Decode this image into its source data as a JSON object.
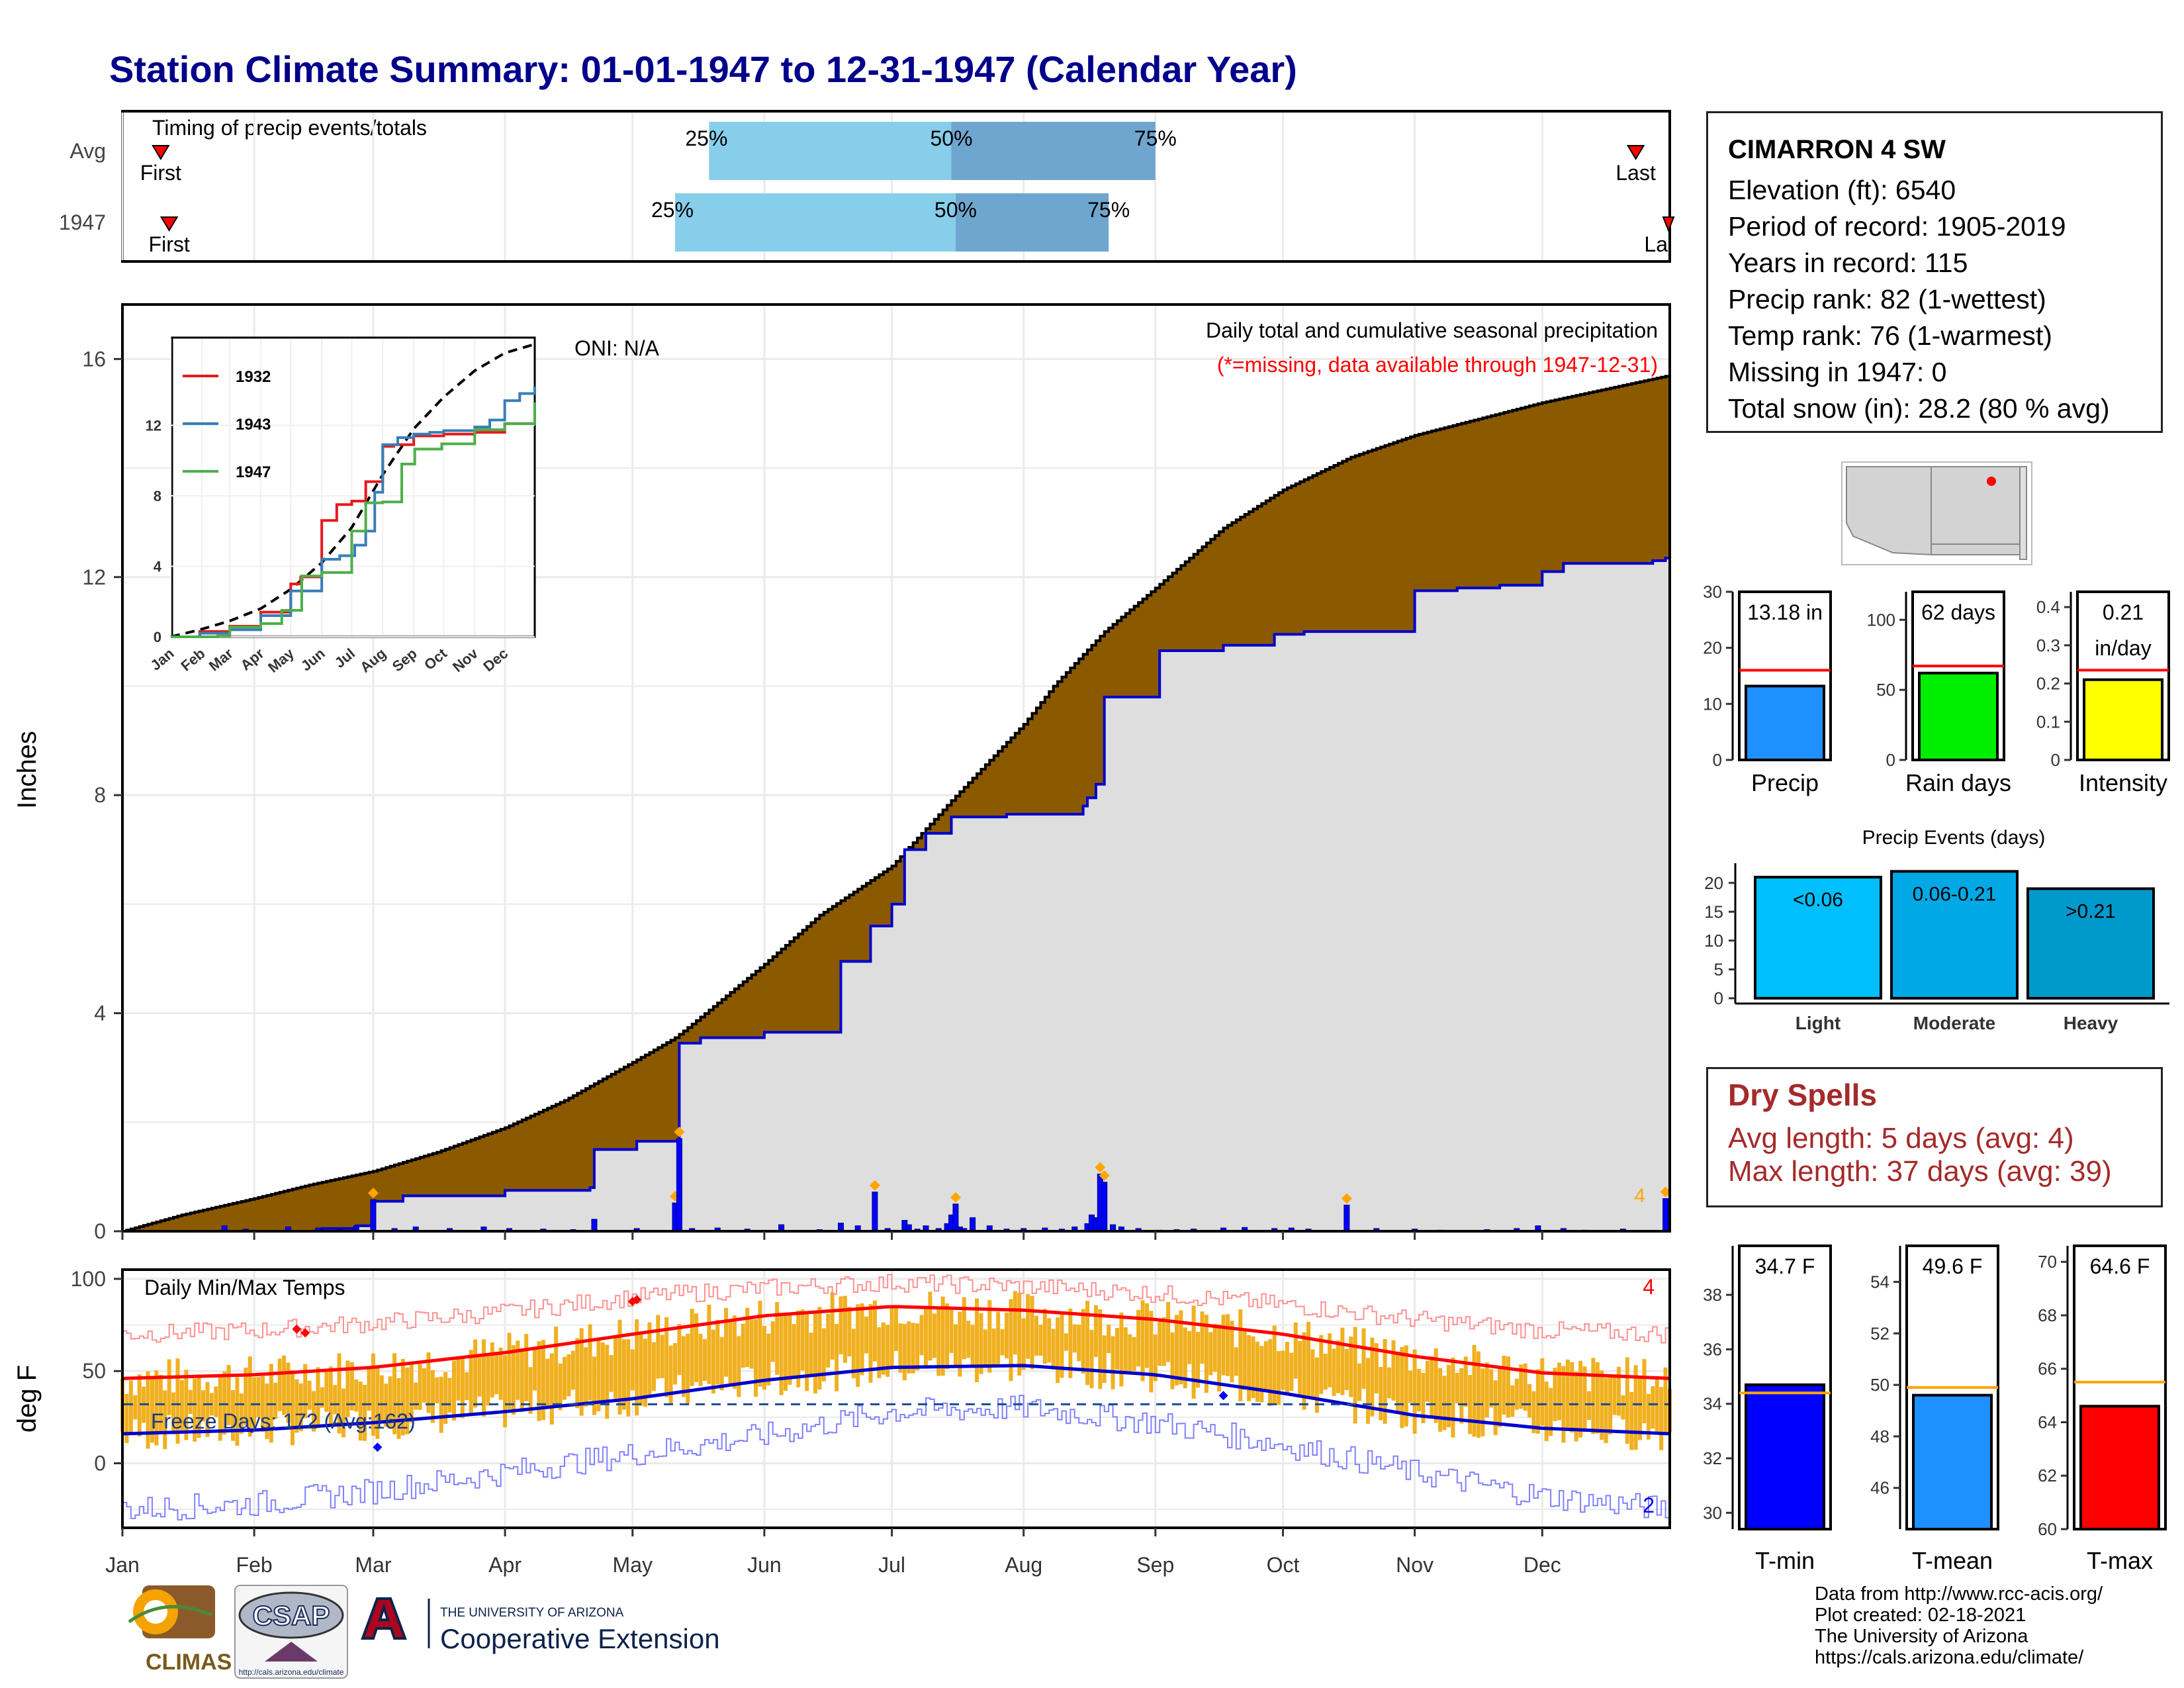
{
  "title": "Station Climate Summary: 01-01-1947 to 12-31-1947 (Calendar Year)",
  "months": [
    "Jan",
    "Feb",
    "Mar",
    "Apr",
    "May",
    "Jun",
    "Jul",
    "Aug",
    "Sep",
    "Oct",
    "Nov",
    "Dec"
  ],
  "timing": {
    "label": "Timing of precip events/totals",
    "rows": [
      {
        "label": "Avg",
        "first_label": "First",
        "last_label": "Last",
        "first_day": 10,
        "p25_day": 139,
        "p50_day": 196,
        "p75_day": 244,
        "last_day": 357,
        "p25": "25%",
        "p50": "50%",
        "p75": "75%"
      },
      {
        "label": "1947",
        "first_label": "First",
        "last_label": "La",
        "first_day": 12,
        "p25_day": 131,
        "p50_day": 197,
        "p75_day": 233,
        "last_day": 365,
        "p25": "25%",
        "p50": "50%",
        "p75": "75%"
      }
    ]
  },
  "main": {
    "ylabel": "Inches",
    "yticks": [
      0,
      4,
      8,
      12,
      16
    ],
    "ylim": [
      0,
      17
    ],
    "oni": "ONI: N/A",
    "subtitle": "Daily total and cumulative seasonal precipitation",
    "missing_note": "(*=missing, data available through 1947-12-31)",
    "corner_count": "4",
    "colors": {
      "avg_fill": "#8B5A00",
      "obs_fill": "#DEDEDE",
      "obs_line": "#0000CD",
      "daily_bars": "#0000FF",
      "extreme_marker": "#FFA500"
    }
  },
  "chart_data": [
    {
      "type": "line",
      "title": "Daily total and cumulative seasonal precipitation",
      "xlabel": "",
      "ylabel": "Inches",
      "xlim": [
        1,
        365
      ],
      "ylim": [
        0,
        17
      ],
      "series": [
        {
          "name": "Average cumulative",
          "x": [
            1,
            15,
            32,
            45,
            60,
            75,
            91,
            105,
            121,
            131,
            135,
            152,
            165,
            182,
            196,
            213,
            220,
            232,
            244,
            260,
            274,
            290,
            305,
            320,
            335,
            350,
            365
          ],
          "y": [
            0,
            0.3,
            0.6,
            0.85,
            1.1,
            1.45,
            1.9,
            2.4,
            3.1,
            3.55,
            3.8,
            4.9,
            5.8,
            6.7,
            7.9,
            9.3,
            10,
            11,
            11.8,
            12.9,
            13.6,
            14.2,
            14.6,
            14.9,
            15.2,
            15.45,
            15.7
          ]
        },
        {
          "name": "1947 cumulative",
          "x": [
            1,
            48,
            56,
            60,
            67,
            84,
            91,
            111,
            112,
            122,
            131,
            132,
            137,
            152,
            170,
            177,
            182,
            185,
            190,
            196,
            200,
            209,
            213,
            227,
            228,
            230,
            232,
            245,
            260,
            272,
            279,
            305,
            315,
            325,
            335,
            340,
            361,
            364,
            365
          ],
          "y": [
            0,
            0.05,
            0.1,
            0.55,
            0.65,
            0.65,
            0.75,
            0.8,
            1.5,
            1.65,
            1.65,
            3.45,
            3.55,
            3.65,
            4.95,
            5.6,
            6.0,
            7.0,
            7.3,
            7.6,
            7.6,
            7.65,
            7.65,
            7.8,
            7.95,
            8.2,
            9.8,
            10.65,
            10.75,
            10.95,
            11.0,
            11.75,
            11.8,
            11.85,
            12.1,
            12.25,
            12.3,
            12.35,
            13.3
          ]
        },
        {
          "name": "1947 daily totals",
          "x": [
            25,
            30,
            40,
            47,
            52,
            56,
            60,
            65,
            70,
            78,
            86,
            92,
            100,
            107,
            112,
            122,
            131,
            132,
            135,
            141,
            148,
            156,
            165,
            170,
            174,
            178,
            181,
            185,
            186,
            188,
            190,
            193,
            195,
            196,
            197,
            198,
            199,
            201,
            205,
            209,
            213,
            218,
            222,
            225,
            227,
            228,
            229,
            230,
            231,
            232,
            234,
            236,
            240,
            245,
            249,
            253,
            260,
            265,
            272,
            276,
            280,
            289,
            296,
            305,
            311,
            322,
            329,
            334,
            340,
            345,
            354,
            364
          ],
          "y": [
            0.1,
            0.04,
            0.08,
            0.06,
            0.04,
            0.1,
            0.58,
            0.05,
            0.08,
            0.05,
            0.08,
            0.05,
            0.04,
            0.03,
            0.22,
            0.05,
            0.52,
            1.7,
            0.05,
            0.06,
            0.04,
            0.12,
            0.03,
            0.15,
            0.1,
            0.72,
            0.05,
            0.2,
            0.12,
            0.04,
            0.1,
            0.05,
            0.14,
            0.3,
            0.5,
            0.08,
            0.05,
            0.25,
            0.1,
            0.04,
            0.05,
            0.06,
            0.04,
            0.08,
            0.02,
            0.14,
            0.3,
            0.25,
            1.05,
            0.9,
            0.12,
            0.08,
            0.05,
            0.02,
            0.03,
            0.04,
            0.06,
            0.07,
            0.05,
            0.06,
            0.04,
            0.48,
            0.05,
            0.04,
            0.02,
            0.03,
            0.05,
            0.1,
            0.05,
            0.02,
            0.04,
            0.6
          ]
        }
      ]
    },
    {
      "type": "line",
      "title": "",
      "xlabel": "",
      "ylabel": "",
      "ylim": [
        0,
        16.6
      ],
      "yticks": [
        0,
        4,
        8,
        12
      ],
      "series": [
        {
          "name": "",
          "x": [
            1,
            30,
            60,
            91,
            121,
            152,
            182,
            213,
            244,
            274,
            305,
            335,
            365
          ],
          "y": [
            0,
            0.4,
            0.9,
            1.6,
            2.7,
            4.2,
            6.2,
            9.2,
            11.8,
            13.6,
            15.1,
            16.1,
            16.6
          ]
        },
        {
          "name": "1932",
          "x": [
            1,
            30,
            60,
            91,
            121,
            131,
            152,
            167,
            182,
            196,
            213,
            224,
            244,
            274,
            305,
            335,
            365
          ],
          "y": [
            0,
            0.3,
            0.6,
            1.4,
            3.0,
            3.4,
            6.6,
            7.5,
            7.7,
            8.8,
            10.8,
            10.9,
            11.4,
            11.5,
            11.6,
            12.1,
            12.1
          ]
        },
        {
          "name": "1943",
          "x": [
            1,
            30,
            60,
            91,
            121,
            152,
            170,
            185,
            196,
            205,
            213,
            228,
            244,
            260,
            274,
            305,
            320,
            335,
            350,
            365
          ],
          "y": [
            0,
            0.2,
            0.4,
            1.2,
            2.6,
            4.4,
            4.6,
            5.2,
            6.0,
            8.2,
            10.9,
            11.3,
            11.5,
            11.6,
            11.7,
            11.9,
            12.3,
            13.4,
            13.8,
            14.2
          ]
        },
        {
          "name": "1947",
          "x": [
            1,
            48,
            60,
            91,
            112,
            132,
            152,
            182,
            196,
            213,
            232,
            245,
            272,
            305,
            335,
            365
          ],
          "y": [
            0,
            0.05,
            0.55,
            0.75,
            1.5,
            3.45,
            3.65,
            6.0,
            7.6,
            7.65,
            9.8,
            10.65,
            10.95,
            11.75,
            12.1,
            13.3
          ]
        }
      ]
    },
    {
      "type": "bar",
      "title": "",
      "categories": [
        "Precip"
      ],
      "values": [
        13.18
      ],
      "value_label": "13.18 in",
      "reference": 16.0,
      "yticks": [
        0,
        10,
        20,
        30
      ],
      "ylim": [
        0,
        30
      ],
      "color": "#1E90FF"
    },
    {
      "type": "bar",
      "title": "",
      "categories": [
        "Rain days"
      ],
      "values": [
        62
      ],
      "value_label": "62 days",
      "reference": 67,
      "yticks": [
        0,
        50,
        100
      ],
      "ylim": [
        0,
        120
      ],
      "color": "#00EE00"
    },
    {
      "type": "bar",
      "title": "",
      "categories": [
        "Intensity"
      ],
      "values": [
        0.21
      ],
      "value_label": "0.21",
      "value_label2": "in/day",
      "reference": 0.235,
      "yticks": [
        0.0,
        0.1,
        0.2,
        0.3,
        0.4
      ],
      "ylim": [
        0,
        0.44
      ],
      "color": "#FFFF00"
    },
    {
      "type": "bar",
      "title": "Precip Events (days)",
      "categories": [
        "Light",
        "Moderate",
        "Heavy"
      ],
      "labels": [
        "<0.06",
        "0.06-0.21",
        ">0.21"
      ],
      "values": [
        21,
        22,
        19
      ],
      "yticks": [
        0,
        5,
        10,
        15,
        20
      ],
      "ylim": [
        0,
        22.5
      ],
      "colors": [
        "#00BFFF",
        "#00A9E6",
        "#0099CC"
      ]
    },
    {
      "type": "line",
      "title": "Daily Min/Max Temps",
      "ylabel": "deg F",
      "yticks": [
        0,
        50,
        100
      ],
      "ylim": [
        -35,
        105
      ],
      "freeze_label": "Freeze Days: 172 (Avg:162)",
      "freeze_line": 32,
      "record_high_count": "4",
      "record_low_count": "2",
      "series": [
        {
          "name": "Avg max",
          "x": [
            1,
            32,
            60,
            91,
            121,
            152,
            182,
            213,
            244,
            274,
            305,
            335,
            365
          ],
          "y": [
            46,
            48,
            52,
            60,
            70,
            80,
            85,
            83,
            78,
            70,
            58,
            49,
            46
          ]
        },
        {
          "name": "Avg min",
          "x": [
            1,
            32,
            60,
            91,
            121,
            152,
            182,
            213,
            244,
            274,
            305,
            335,
            365
          ],
          "y": [
            16,
            18,
            22,
            28,
            35,
            45,
            52,
            53,
            48,
            38,
            26,
            19,
            16
          ]
        },
        {
          "name": "Record max",
          "x": [
            1,
            32,
            60,
            91,
            121,
            152,
            182,
            213,
            244,
            274,
            305,
            335,
            365
          ],
          "y": [
            70,
            72,
            76,
            82,
            90,
            95,
            98,
            96,
            92,
            86,
            78,
            72,
            70
          ]
        },
        {
          "name": "Record min",
          "x": [
            1,
            32,
            60,
            91,
            121,
            152,
            182,
            213,
            244,
            274,
            305,
            335,
            365
          ],
          "y": [
            -25,
            -22,
            -15,
            -5,
            5,
            15,
            28,
            30,
            22,
            10,
            -5,
            -18,
            -25
          ]
        }
      ]
    },
    {
      "type": "bar",
      "title": "",
      "categories": [
        "T-min"
      ],
      "values": [
        34.7
      ],
      "value_label": "34.7 F",
      "reference": 34.4,
      "yticks": [
        30,
        32,
        34,
        36,
        38
      ],
      "ylim": [
        29.4,
        39.8
      ],
      "color": "#0000FF"
    },
    {
      "type": "bar",
      "title": "",
      "categories": [
        "T-mean"
      ],
      "values": [
        49.6
      ],
      "value_label": "49.6 F",
      "reference": 49.9,
      "yticks": [
        46,
        48,
        50,
        52,
        54
      ],
      "ylim": [
        44.4,
        55.4
      ],
      "color": "#1E90FF"
    },
    {
      "type": "bar",
      "title": "",
      "categories": [
        "T-max"
      ],
      "values": [
        64.6
      ],
      "value_label": "64.6 F",
      "reference": 65.5,
      "yticks": [
        60,
        62,
        64,
        66,
        68,
        70
      ],
      "ylim": [
        60,
        70.6
      ],
      "color": "#FF0000"
    }
  ],
  "inset_legend": [
    "1932",
    "1943",
    "1947"
  ],
  "inset_colors": {
    "avg": "#000000",
    "1932": "#E41A1C",
    "1943": "#377EB8",
    "1947": "#4DAF4A"
  },
  "station": {
    "name": "CIMARRON 4 SW",
    "elevation": "Elevation (ft): 6540",
    "period": "Period of record: 1905-2019",
    "years": "Years in record: 115",
    "precip_rank": "Precip rank: 82 (1-wettest)",
    "temp_rank": "Temp rank: 76 (1-warmest)",
    "missing": "Missing in 1947: 0",
    "snow": "Total snow (in): 28.2 (80 % avg)"
  },
  "dry_spells": {
    "title": "Dry Spells",
    "avg": "Avg length: 5 days (avg: 4)",
    "max": "Max length: 37 days (avg: 39)"
  },
  "credits": {
    "line1": "Data from http://www.rcc-acis.org/",
    "line2": "Plot created: 02-18-2021",
    "line3": "The University of Arizona",
    "line4": "https://cals.arizona.edu/climate/"
  },
  "logos": {
    "climas": "CLIMAS",
    "csap": "CSAP",
    "csap_url": "http://cals.arizona.edu/climate",
    "ua_top": "THE UNIVERSITY OF ARIZONA",
    "ua_bottom": "Cooperative Extension"
  }
}
